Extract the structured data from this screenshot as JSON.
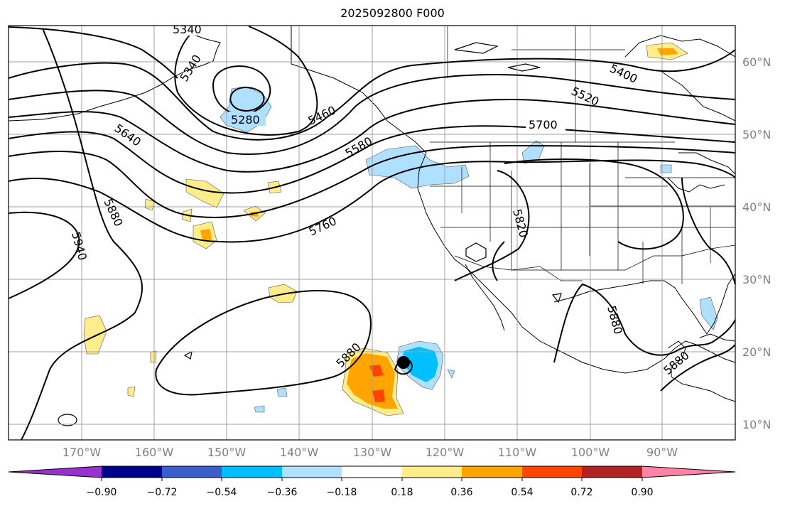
{
  "title": "2025092800 F000",
  "map": {
    "lon_labels": [
      "170°W",
      "160°W",
      "150°W",
      "140°W",
      "130°W",
      "120°W",
      "110°W",
      "100°W",
      "90°W"
    ],
    "lat_labels": [
      "60°N",
      "50°N",
      "40°N",
      "30°N",
      "20°N",
      "10°N"
    ],
    "contour_labels": [
      "5340",
      "5340",
      "5280",
      "5460",
      "5400",
      "5520",
      "5700",
      "5580",
      "5640",
      "5760",
      "5880",
      "5820",
      "5940",
      "5880",
      "5880",
      "5880"
    ]
  },
  "colorbar": {
    "ticks": [
      "−0.90",
      "−0.72",
      "−0.54",
      "−0.36",
      "−0.18",
      "0.18",
      "0.36",
      "0.54",
      "0.72",
      "0.90"
    ],
    "colors": [
      "#9932cc",
      "#00008b",
      "#3a5fcd",
      "#00bfff",
      "#b0e0ff",
      "#ffffff",
      "#ffec8b",
      "#ffa500",
      "#ff4500",
      "#b22222",
      "#ff82ab"
    ]
  }
}
